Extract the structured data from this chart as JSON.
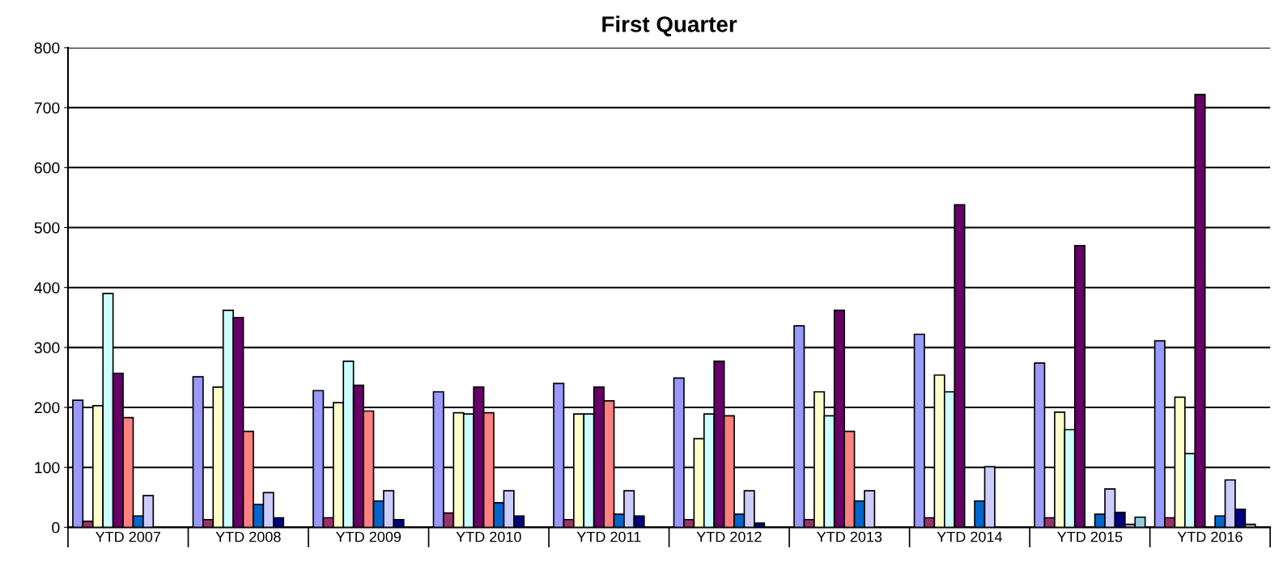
{
  "chart_data": {
    "type": "bar",
    "title": "First Quarter",
    "categories": [
      "YTD 2007",
      "YTD 2008",
      "YTD 2009",
      "YTD 2010",
      "YTD 2011",
      "YTD 2012",
      "YTD 2013",
      "YTD 2014",
      "YTD 2015",
      "YTD 2016"
    ],
    "series": [
      {
        "color": "#9999ff",
        "values": [
          212,
          251,
          228,
          226,
          240,
          249,
          336,
          322,
          274,
          311
        ]
      },
      {
        "color": "#993366",
        "values": [
          10,
          13,
          16,
          24,
          13,
          13,
          13,
          16,
          16,
          16
        ]
      },
      {
        "color": "#ffffcc",
        "values": [
          203,
          234,
          208,
          191,
          189,
          148,
          226,
          254,
          192,
          217
        ]
      },
      {
        "color": "#ccffff",
        "values": [
          390,
          362,
          277,
          189,
          189,
          189,
          186,
          226,
          163,
          123
        ]
      },
      {
        "color": "#660066",
        "values": [
          257,
          350,
          237,
          234,
          234,
          277,
          362,
          538,
          470,
          722
        ]
      },
      {
        "color": "#ff8080",
        "values": [
          183,
          160,
          194,
          191,
          211,
          186,
          160,
          null,
          null,
          null
        ]
      },
      {
        "color": "#0066cc",
        "values": [
          19,
          38,
          44,
          41,
          22,
          22,
          44,
          44,
          22,
          19
        ]
      },
      {
        "color": "#ccccff",
        "values": [
          53,
          58,
          61,
          61,
          61,
          61,
          61,
          101,
          64,
          79
        ]
      },
      {
        "color": "#000080",
        "values": [
          null,
          16,
          13,
          19,
          19,
          7,
          null,
          null,
          25,
          30
        ]
      },
      {
        "color": "#b2a1c7",
        "values": [
          null,
          null,
          null,
          null,
          null,
          null,
          null,
          null,
          5,
          5
        ]
      },
      {
        "color": "#93cddd",
        "values": [
          null,
          null,
          null,
          null,
          null,
          null,
          null,
          null,
          17,
          null
        ]
      }
    ],
    "ylim": [
      0,
      800
    ],
    "yticks": [
      0,
      100,
      200,
      300,
      400,
      500,
      600,
      700,
      800
    ],
    "grid": "y"
  }
}
